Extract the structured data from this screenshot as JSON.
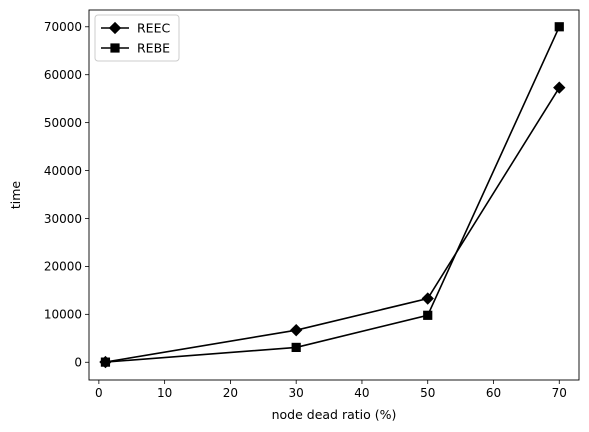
{
  "chart_data": {
    "type": "line",
    "title": "",
    "xlabel": "node dead ratio (%)",
    "ylabel": "time",
    "xlim": [
      -1.5,
      73
    ],
    "ylim": [
      -3700,
      73500
    ],
    "xticks": [
      0,
      10,
      20,
      30,
      40,
      50,
      60,
      70
    ],
    "yticks": [
      0,
      10000,
      20000,
      30000,
      40000,
      50000,
      60000,
      70000
    ],
    "x": [
      1,
      30,
      50,
      70
    ],
    "series": [
      {
        "name": "REEC",
        "marker": "diamond",
        "color": "#000000",
        "values": [
          50,
          6700,
          13300,
          57300
        ]
      },
      {
        "name": "REBE",
        "marker": "square",
        "color": "#000000",
        "values": [
          30,
          3100,
          9800,
          70000
        ]
      }
    ],
    "legend": "top-left",
    "grid": false
  }
}
